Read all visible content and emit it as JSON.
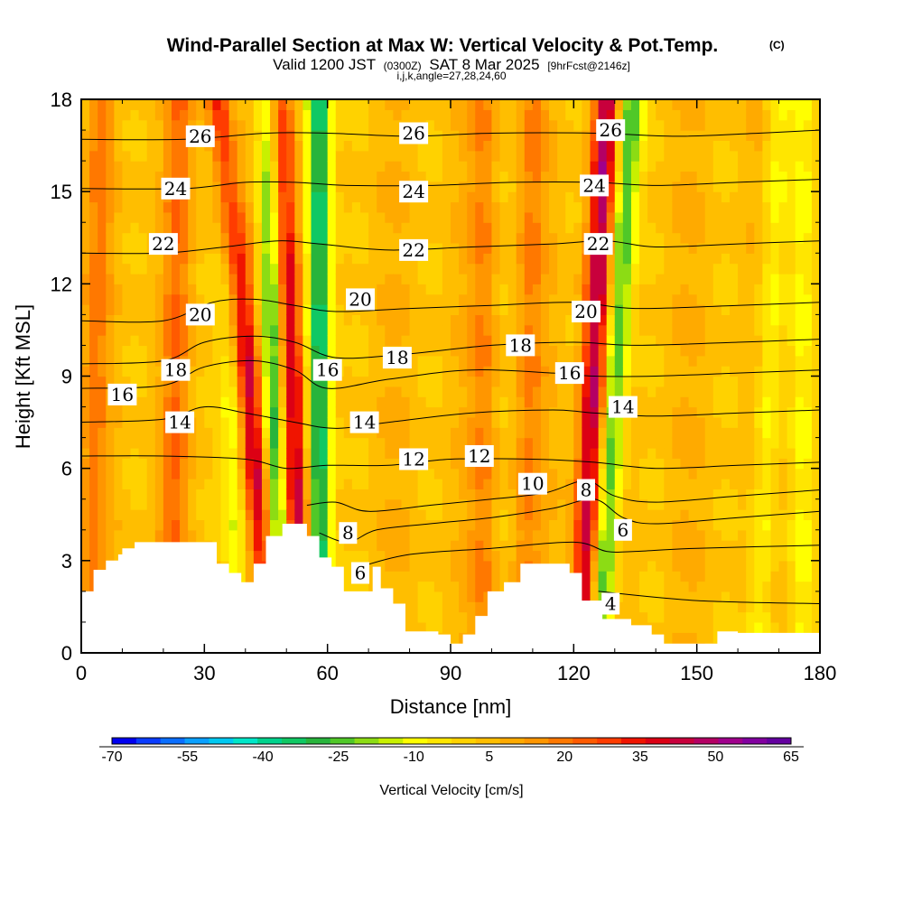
{
  "chart_data": {
    "type": "heatmap",
    "title": "Wind-Parallel Section at Max W: Vertical Velocity & Pot.Temp.",
    "title_mark": "(C)",
    "subtitle_main": "Valid 1200 JST",
    "subtitle_utc": "(0300Z)",
    "subtitle_date": "SAT 8 Mar 2025",
    "subtitle_fcst": "[9hrFcst@2146z]",
    "subtitle_line2": "i,j,k,angle=27,28,24,60",
    "xlabel": "Distance [nm]",
    "ylabel": "Height [Kft MSL]",
    "xlim": [
      0,
      180
    ],
    "ylim": [
      0,
      18
    ],
    "x_ticks": [
      "0",
      "30",
      "60",
      "90",
      "120",
      "150",
      "180"
    ],
    "y_ticks": [
      "0",
      "3",
      "6",
      "9",
      "12",
      "15",
      "18"
    ],
    "colorbar": {
      "label": "Vertical Velocity [cm/s]",
      "tick_labels": [
        "-70",
        "-55",
        "-40",
        "-25",
        "-10",
        "5",
        "20",
        "35",
        "50",
        "65"
      ],
      "colors": [
        "#0000f0",
        "#0a3cff",
        "#0a6eff",
        "#0aa0ff",
        "#00c8f0",
        "#00e6c8",
        "#00d28c",
        "#10c864",
        "#28b43c",
        "#50c828",
        "#8cdc14",
        "#c8f000",
        "#ffff00",
        "#ffe600",
        "#ffd200",
        "#ffbe00",
        "#ffaa00",
        "#ff9600",
        "#ff7800",
        "#ff5a00",
        "#ff3c00",
        "#f01400",
        "#dc0014",
        "#c8003c",
        "#b40064",
        "#a0008c",
        "#8200a0",
        "#6400a0"
      ]
    },
    "updrafts": [
      {
        "x_bottom": 47,
        "x_top": 34,
        "w": 40
      },
      {
        "x_bottom": 54,
        "x_top": 48,
        "w": 45
      },
      {
        "x_bottom": 122,
        "x_top": 128,
        "w": 45
      },
      {
        "x_bottom": 98,
        "x_top": 98,
        "w": 12
      },
      {
        "x_bottom": 108,
        "x_top": 110,
        "w": 12
      },
      {
        "x_bottom": 22,
        "x_top": 24,
        "w": 15
      },
      {
        "x_bottom": 2,
        "x_top": 5,
        "w": 12
      }
    ],
    "downdrafts": [
      {
        "x_bottom": 48,
        "x_top": 46,
        "w": -38
      },
      {
        "x_bottom": 58,
        "x_top": 58,
        "w": -45
      },
      {
        "x_bottom": 126,
        "x_top": 134,
        "w": -35
      },
      {
        "x_bottom": 165,
        "x_top": 170,
        "w": -15
      },
      {
        "x_bottom": 38,
        "x_top": 36,
        "w": -18
      },
      {
        "x_bottom": 176,
        "x_top": 176,
        "w": -12
      }
    ],
    "terrain": [
      [
        0,
        2.0
      ],
      [
        3,
        2.0
      ],
      [
        3,
        2.7
      ],
      [
        6,
        2.7
      ],
      [
        6,
        3.0
      ],
      [
        9,
        3.0
      ],
      [
        9,
        3.2
      ],
      [
        10,
        3.2
      ],
      [
        10,
        3.4
      ],
      [
        13,
        3.4
      ],
      [
        13,
        3.6
      ],
      [
        33,
        3.6
      ],
      [
        33,
        2.9
      ],
      [
        36,
        2.9
      ],
      [
        36,
        2.6
      ],
      [
        39,
        2.6
      ],
      [
        39,
        2.3
      ],
      [
        42,
        2.3
      ],
      [
        42,
        2.9
      ],
      [
        45,
        2.9
      ],
      [
        45,
        3.8
      ],
      [
        49,
        3.8
      ],
      [
        49,
        4.2
      ],
      [
        55,
        4.2
      ],
      [
        55,
        3.8
      ],
      [
        58,
        3.8
      ],
      [
        58,
        3.1
      ],
      [
        61,
        3.1
      ],
      [
        61,
        2.8
      ],
      [
        64,
        2.8
      ],
      [
        64,
        2.0
      ],
      [
        71,
        2.0
      ],
      [
        71,
        2.8
      ],
      [
        73,
        2.8
      ],
      [
        73,
        2.1
      ],
      [
        76,
        2.1
      ],
      [
        76,
        1.6
      ],
      [
        79,
        1.6
      ],
      [
        79,
        0.7
      ],
      [
        87,
        0.7
      ],
      [
        87,
        0.6
      ],
      [
        90,
        0.6
      ],
      [
        90,
        0.3
      ],
      [
        93,
        0.3
      ],
      [
        93,
        0.6
      ],
      [
        96,
        0.6
      ],
      [
        96,
        1.2
      ],
      [
        99,
        1.2
      ],
      [
        99,
        2.0
      ],
      [
        103,
        2.0
      ],
      [
        103,
        2.3
      ],
      [
        107,
        2.3
      ],
      [
        107,
        2.9
      ],
      [
        119,
        2.9
      ],
      [
        119,
        2.6
      ],
      [
        122,
        2.6
      ],
      [
        122,
        1.7
      ],
      [
        127,
        1.7
      ],
      [
        127,
        1.1
      ],
      [
        134,
        1.1
      ],
      [
        134,
        0.9
      ],
      [
        139,
        0.9
      ],
      [
        139,
        0.6
      ],
      [
        142,
        0.6
      ],
      [
        142,
        0.3
      ],
      [
        155,
        0.3
      ],
      [
        155,
        0.7
      ],
      [
        160,
        0.7
      ],
      [
        160,
        0.65
      ],
      [
        180,
        0.65
      ]
    ],
    "isentropes": [
      {
        "theta": 4,
        "label": "4",
        "pts": [
          [
            126,
            2.0
          ],
          [
            150,
            1.7
          ],
          [
            180,
            1.6
          ]
        ]
      },
      {
        "theta": 6,
        "label": "6",
        "pts": [
          [
            68,
            2.8
          ],
          [
            80,
            3.2
          ],
          [
            100,
            3.4
          ],
          [
            120,
            3.6
          ],
          [
            128,
            3.3
          ],
          [
            135,
            3.3
          ],
          [
            150,
            3.4
          ],
          [
            180,
            3.5
          ]
        ]
      },
      {
        "theta": 8,
        "label": "8",
        "pts": [
          [
            58,
            3.9
          ],
          [
            65,
            3.6
          ],
          [
            72,
            4.0
          ],
          [
            85,
            4.2
          ],
          [
            100,
            4.4
          ],
          [
            115,
            4.7
          ],
          [
            125,
            5.0
          ],
          [
            132,
            4.4
          ],
          [
            140,
            4.2
          ],
          [
            160,
            4.4
          ],
          [
            180,
            4.6
          ]
        ]
      },
      {
        "theta": 10,
        "label": "10",
        "pts": [
          [
            55,
            4.8
          ],
          [
            62,
            4.9
          ],
          [
            70,
            4.6
          ],
          [
            85,
            4.8
          ],
          [
            100,
            5.0
          ],
          [
            113,
            5.2
          ],
          [
            123,
            5.6
          ],
          [
            130,
            5.1
          ],
          [
            140,
            4.9
          ],
          [
            160,
            5.1
          ],
          [
            180,
            5.3
          ]
        ]
      },
      {
        "theta": 12,
        "label": "12",
        "pts": [
          [
            0,
            6.4
          ],
          [
            20,
            6.4
          ],
          [
            40,
            6.3
          ],
          [
            50,
            6.0
          ],
          [
            60,
            6.1
          ],
          [
            75,
            6.1
          ],
          [
            90,
            6.3
          ],
          [
            110,
            6.3
          ],
          [
            125,
            6.2
          ],
          [
            140,
            6.0
          ],
          [
            160,
            6.1
          ],
          [
            180,
            6.2
          ]
        ]
      },
      {
        "theta": 14,
        "label": "14",
        "pts": [
          [
            0,
            7.5
          ],
          [
            20,
            7.6
          ],
          [
            30,
            8.0
          ],
          [
            40,
            7.8
          ],
          [
            52,
            7.5
          ],
          [
            62,
            7.3
          ],
          [
            75,
            7.5
          ],
          [
            95,
            7.8
          ],
          [
            115,
            7.9
          ],
          [
            125,
            7.8
          ],
          [
            140,
            7.7
          ],
          [
            160,
            7.8
          ],
          [
            180,
            7.9
          ]
        ]
      },
      {
        "theta": 16,
        "label": "16",
        "pts": [
          [
            0,
            8.6
          ],
          [
            20,
            8.7
          ],
          [
            30,
            9.3
          ],
          [
            42,
            9.5
          ],
          [
            52,
            9.2
          ],
          [
            60,
            8.6
          ],
          [
            75,
            8.9
          ],
          [
            95,
            9.2
          ],
          [
            115,
            9.1
          ],
          [
            125,
            9.0
          ],
          [
            140,
            9.0
          ],
          [
            160,
            9.1
          ],
          [
            180,
            9.2
          ]
        ]
      },
      {
        "theta": 18,
        "label": "18",
        "pts": [
          [
            0,
            9.4
          ],
          [
            20,
            9.5
          ],
          [
            30,
            10.1
          ],
          [
            42,
            10.3
          ],
          [
            52,
            10.1
          ],
          [
            62,
            9.6
          ],
          [
            78,
            9.7
          ],
          [
            100,
            10.0
          ],
          [
            120,
            10.1
          ],
          [
            135,
            10.0
          ],
          [
            160,
            10.1
          ],
          [
            180,
            10.2
          ]
        ]
      },
      {
        "theta": 20,
        "label": "20",
        "pts": [
          [
            0,
            10.8
          ],
          [
            20,
            10.8
          ],
          [
            32,
            11.4
          ],
          [
            42,
            11.5
          ],
          [
            52,
            11.3
          ],
          [
            62,
            11.1
          ],
          [
            80,
            11.2
          ],
          [
            100,
            11.3
          ],
          [
            120,
            11.4
          ],
          [
            135,
            11.2
          ],
          [
            160,
            11.3
          ],
          [
            180,
            11.4
          ]
        ]
      },
      {
        "theta": 22,
        "label": "22",
        "pts": [
          [
            0,
            13.0
          ],
          [
            20,
            13.0
          ],
          [
            35,
            13.2
          ],
          [
            48,
            13.4
          ],
          [
            58,
            13.3
          ],
          [
            75,
            13.1
          ],
          [
            95,
            13.2
          ],
          [
            115,
            13.3
          ],
          [
            128,
            13.4
          ],
          [
            140,
            13.2
          ],
          [
            160,
            13.3
          ],
          [
            180,
            13.4
          ]
        ]
      },
      {
        "theta": 24,
        "label": "24",
        "pts": [
          [
            0,
            15.1
          ],
          [
            25,
            15.1
          ],
          [
            40,
            15.3
          ],
          [
            52,
            15.3
          ],
          [
            65,
            15.2
          ],
          [
            85,
            15.2
          ],
          [
            105,
            15.3
          ],
          [
            125,
            15.3
          ],
          [
            140,
            15.2
          ],
          [
            160,
            15.3
          ],
          [
            180,
            15.4
          ]
        ]
      },
      {
        "theta": 26,
        "label": "26",
        "pts": [
          [
            0,
            16.7
          ],
          [
            25,
            16.7
          ],
          [
            45,
            16.9
          ],
          [
            60,
            16.9
          ],
          [
            80,
            16.8
          ],
          [
            100,
            16.9
          ],
          [
            125,
            16.9
          ],
          [
            145,
            16.8
          ],
          [
            165,
            16.9
          ],
          [
            180,
            17.0
          ]
        ]
      }
    ],
    "isentrope_labels": [
      {
        "text": "26",
        "x": 29,
        "y": 16.8
      },
      {
        "text": "24",
        "x": 23,
        "y": 15.1
      },
      {
        "text": "22",
        "x": 20,
        "y": 13.3
      },
      {
        "text": "20",
        "x": 29,
        "y": 11.0
      },
      {
        "text": "18",
        "x": 23,
        "y": 9.2
      },
      {
        "text": "16",
        "x": 10,
        "y": 8.4
      },
      {
        "text": "14",
        "x": 24,
        "y": 7.5
      },
      {
        "text": "16",
        "x": 60,
        "y": 9.2
      },
      {
        "text": "20",
        "x": 68,
        "y": 11.5
      },
      {
        "text": "14",
        "x": 69,
        "y": 7.5
      },
      {
        "text": "26",
        "x": 81,
        "y": 16.9
      },
      {
        "text": "24",
        "x": 81,
        "y": 15.0
      },
      {
        "text": "22",
        "x": 81,
        "y": 13.1
      },
      {
        "text": "18",
        "x": 77,
        "y": 9.6
      },
      {
        "text": "12",
        "x": 81,
        "y": 6.3
      },
      {
        "text": "12",
        "x": 97,
        "y": 6.4
      },
      {
        "text": "18",
        "x": 107,
        "y": 10.0
      },
      {
        "text": "10",
        "x": 110,
        "y": 5.5
      },
      {
        "text": "26",
        "x": 129,
        "y": 17.0
      },
      {
        "text": "24",
        "x": 125,
        "y": 15.2
      },
      {
        "text": "22",
        "x": 126,
        "y": 13.3
      },
      {
        "text": "20",
        "x": 123,
        "y": 11.1
      },
      {
        "text": "16",
        "x": 119,
        "y": 9.1
      },
      {
        "text": "14",
        "x": 132,
        "y": 8.0
      },
      {
        "text": "8",
        "x": 123,
        "y": 5.3
      },
      {
        "text": "6",
        "x": 132,
        "y": 4.0
      },
      {
        "text": "8",
        "x": 65,
        "y": 3.9
      },
      {
        "text": "6",
        "x": 68,
        "y": 2.6
      },
      {
        "text": "4",
        "x": 129,
        "y": 1.6
      }
    ]
  }
}
